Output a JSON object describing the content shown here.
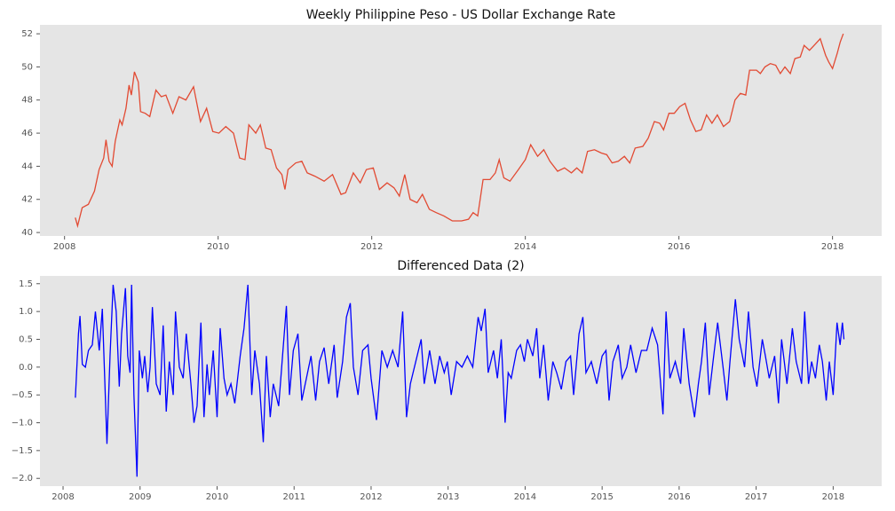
{
  "chart_data": [
    {
      "type": "line",
      "title": "Weekly Philippine Peso - US Dollar Exchange Rate",
      "x": [
        2008.14,
        2008.17,
        2008.23,
        2008.31,
        2008.39,
        2008.45,
        2008.51,
        2008.54,
        2008.58,
        2008.62,
        2008.66,
        2008.72,
        2008.75,
        2008.8,
        2008.84,
        2008.87,
        2008.91,
        2008.96,
        2008.99,
        2009.05,
        2009.11,
        2009.19,
        2009.26,
        2009.32,
        2009.41,
        2009.49,
        2009.58,
        2009.68,
        2009.77,
        2009.85,
        2009.93,
        2010.01,
        2010.1,
        2010.2,
        2010.28,
        2010.35,
        2010.4,
        2010.49,
        2010.55,
        2010.62,
        2010.69,
        2010.76,
        2010.83,
        2010.87,
        2010.91,
        2011.01,
        2011.09,
        2011.16,
        2011.26,
        2011.38,
        2011.49,
        2011.6,
        2011.66,
        2011.76,
        2011.85,
        2011.93,
        2012.02,
        2012.1,
        2012.2,
        2012.29,
        2012.36,
        2012.43,
        2012.5,
        2012.59,
        2012.66,
        2012.75,
        2012.84,
        2012.94,
        2013.05,
        2013.17,
        2013.26,
        2013.32,
        2013.38,
        2013.45,
        2013.54,
        2013.61,
        2013.66,
        2013.72,
        2013.8,
        2013.91,
        2014.0,
        2014.07,
        2014.16,
        2014.24,
        2014.32,
        2014.42,
        2014.51,
        2014.6,
        2014.67,
        2014.74,
        2014.81,
        2014.9,
        2014.99,
        2015.06,
        2015.13,
        2015.21,
        2015.29,
        2015.36,
        2015.43,
        2015.53,
        2015.6,
        2015.68,
        2015.75,
        2015.8,
        2015.87,
        2015.94,
        2016.01,
        2016.08,
        2016.15,
        2016.22,
        2016.29,
        2016.36,
        2016.43,
        2016.5,
        2016.58,
        2016.66,
        2016.73,
        2016.8,
        2016.87,
        2016.92,
        2017.01,
        2017.06,
        2017.12,
        2017.19,
        2017.26,
        2017.32,
        2017.38,
        2017.45,
        2017.51,
        2017.58,
        2017.63,
        2017.7,
        2017.76,
        2017.84,
        2017.91,
        2017.95,
        2018.0,
        2018.06,
        2018.1,
        2018.14
      ],
      "series": [
        {
          "color": "#e24a33",
          "values": [
            40.9,
            40.4,
            41.5,
            41.7,
            42.5,
            43.8,
            44.5,
            45.6,
            44.3,
            44.0,
            45.5,
            46.8,
            46.5,
            47.5,
            48.9,
            48.3,
            49.7,
            49.1,
            47.3,
            47.2,
            47.0,
            48.6,
            48.2,
            48.3,
            47.2,
            48.2,
            48.0,
            48.8,
            46.7,
            47.5,
            46.1,
            46.0,
            46.4,
            46.0,
            44.5,
            44.4,
            46.5,
            46.0,
            46.5,
            45.1,
            45.0,
            43.9,
            43.5,
            42.6,
            43.8,
            44.2,
            44.3,
            43.6,
            43.4,
            43.1,
            43.5,
            42.3,
            42.4,
            43.6,
            43.0,
            43.8,
            43.9,
            42.6,
            43.0,
            42.7,
            42.2,
            43.5,
            42.0,
            41.8,
            42.3,
            41.4,
            41.2,
            41.0,
            40.7,
            40.7,
            40.8,
            41.2,
            41.0,
            43.2,
            43.2,
            43.6,
            44.4,
            43.3,
            43.1,
            43.8,
            44.4,
            45.3,
            44.6,
            45.0,
            44.3,
            43.7,
            43.9,
            43.6,
            43.9,
            43.6,
            44.9,
            45.0,
            44.8,
            44.7,
            44.2,
            44.3,
            44.6,
            44.2,
            45.1,
            45.2,
            45.7,
            46.7,
            46.6,
            46.2,
            47.2,
            47.2,
            47.6,
            47.8,
            46.8,
            46.1,
            46.2,
            47.1,
            46.6,
            47.1,
            46.4,
            46.7,
            48.0,
            48.4,
            48.3,
            49.8,
            49.8,
            49.6,
            50.0,
            50.2,
            50.1,
            49.6,
            50.0,
            49.6,
            50.5,
            50.6,
            51.3,
            51.0,
            51.3,
            51.7,
            50.7,
            50.3,
            49.9,
            50.8,
            51.5,
            52.0
          ]
        }
      ],
      "xlim": [
        2007.68,
        2018.64
      ],
      "ylim": [
        39.79,
        52.54
      ],
      "xticks": [
        2008,
        2010,
        2012,
        2014,
        2016,
        2018
      ],
      "yticks": [
        40,
        42,
        44,
        46,
        48,
        50,
        52
      ]
    },
    {
      "type": "line",
      "title": "Differenced Data (2)",
      "x": [
        2008.16,
        2008.2,
        2008.22,
        2008.25,
        2008.29,
        2008.33,
        2008.38,
        2008.42,
        2008.47,
        2008.51,
        2008.57,
        2008.61,
        2008.65,
        2008.69,
        2008.73,
        2008.76,
        2008.81,
        2008.84,
        2008.87,
        2008.89,
        2008.92,
        2008.96,
        2008.99,
        2009.03,
        2009.06,
        2009.1,
        2009.13,
        2009.16,
        2009.21,
        2009.26,
        2009.3,
        2009.34,
        2009.38,
        2009.43,
        2009.46,
        2009.51,
        2009.56,
        2009.6,
        2009.66,
        2009.7,
        2009.74,
        2009.79,
        2009.83,
        2009.87,
        2009.9,
        2009.95,
        2010.0,
        2010.04,
        2010.09,
        2010.13,
        2010.18,
        2010.23,
        2010.3,
        2010.35,
        2010.4,
        2010.45,
        2010.49,
        2010.55,
        2010.6,
        2010.64,
        2010.69,
        2010.73,
        2010.8,
        2010.85,
        2010.9,
        2010.94,
        2010.99,
        2011.05,
        2011.1,
        2011.16,
        2011.22,
        2011.28,
        2011.33,
        2011.39,
        2011.45,
        2011.52,
        2011.56,
        2011.63,
        2011.68,
        2011.73,
        2011.77,
        2011.83,
        2011.89,
        2011.96,
        2012.0,
        2012.07,
        2012.14,
        2012.21,
        2012.28,
        2012.35,
        2012.41,
        2012.46,
        2012.51,
        2012.58,
        2012.65,
        2012.69,
        2012.76,
        2012.83,
        2012.89,
        2012.95,
        2012.99,
        2013.04,
        2013.11,
        2013.18,
        2013.25,
        2013.32,
        2013.39,
        2013.43,
        2013.48,
        2013.52,
        2013.59,
        2013.64,
        2013.69,
        2013.74,
        2013.78,
        2013.82,
        2013.89,
        2013.94,
        2013.99,
        2014.03,
        2014.1,
        2014.15,
        2014.19,
        2014.24,
        2014.3,
        2014.36,
        2014.41,
        2014.47,
        2014.53,
        2014.59,
        2014.63,
        2014.7,
        2014.75,
        2014.79,
        2014.86,
        2014.93,
        2015.0,
        2015.05,
        2015.09,
        2015.14,
        2015.21,
        2015.26,
        2015.32,
        2015.37,
        2015.44,
        2015.51,
        2015.58,
        2015.65,
        2015.72,
        2015.79,
        2015.83,
        2015.88,
        2015.95,
        2016.02,
        2016.06,
        2016.13,
        2016.2,
        2016.25,
        2016.29,
        2016.34,
        2016.39,
        2016.44,
        2016.5,
        2016.57,
        2016.62,
        2016.66,
        2016.73,
        2016.78,
        2016.85,
        2016.9,
        2016.96,
        2017.01,
        2017.08,
        2017.12,
        2017.17,
        2017.24,
        2017.29,
        2017.33,
        2017.4,
        2017.47,
        2017.52,
        2017.59,
        2017.63,
        2017.68,
        2017.72,
        2017.77,
        2017.82,
        2017.86,
        2017.91,
        2017.95,
        2018.0,
        2018.05,
        2018.09,
        2018.12,
        2018.14
      ],
      "series": [
        {
          "color": "#0000ff",
          "values": [
            -0.55,
            0.6,
            0.92,
            0.05,
            0.0,
            0.3,
            0.4,
            1.0,
            0.3,
            1.05,
            -1.38,
            0.2,
            1.48,
            1.0,
            -0.35,
            0.6,
            1.42,
            0.2,
            -0.1,
            1.48,
            -0.5,
            -1.97,
            0.3,
            -0.2,
            0.2,
            -0.45,
            0.0,
            1.08,
            -0.3,
            -0.5,
            0.75,
            -0.8,
            0.1,
            -0.5,
            1.0,
            0.0,
            -0.2,
            0.6,
            -0.3,
            -1.0,
            -0.7,
            0.8,
            -0.9,
            0.05,
            -0.5,
            0.3,
            -0.9,
            0.7,
            -0.2,
            -0.5,
            -0.3,
            -0.65,
            0.2,
            0.7,
            1.48,
            -0.5,
            0.3,
            -0.3,
            -1.35,
            0.2,
            -0.9,
            -0.3,
            -0.7,
            0.2,
            1.1,
            -0.5,
            0.3,
            0.6,
            -0.6,
            -0.2,
            0.2,
            -0.6,
            0.1,
            0.35,
            -0.3,
            0.4,
            -0.55,
            0.1,
            0.9,
            1.15,
            0.0,
            -0.5,
            0.3,
            0.4,
            -0.2,
            -0.95,
            0.3,
            0.0,
            0.3,
            0.0,
            1.0,
            -0.9,
            -0.3,
            0.1,
            0.5,
            -0.3,
            0.3,
            -0.3,
            0.2,
            -0.1,
            0.1,
            -0.5,
            0.1,
            0.0,
            0.2,
            0.0,
            0.9,
            0.65,
            1.05,
            -0.1,
            0.3,
            -0.2,
            0.5,
            -1.0,
            -0.1,
            -0.2,
            0.3,
            0.4,
            0.1,
            0.5,
            0.2,
            0.7,
            -0.2,
            0.4,
            -0.6,
            0.1,
            -0.1,
            -0.4,
            0.1,
            0.2,
            -0.5,
            0.6,
            0.9,
            -0.1,
            0.1,
            -0.3,
            0.2,
            0.3,
            -0.6,
            0.1,
            0.4,
            -0.2,
            0.0,
            0.4,
            -0.1,
            0.3,
            0.3,
            0.7,
            0.4,
            -0.85,
            1.0,
            -0.2,
            0.1,
            -0.3,
            0.7,
            -0.3,
            -0.9,
            -0.3,
            0.1,
            0.8,
            -0.5,
            0.1,
            0.8,
            0.0,
            -0.6,
            0.1,
            1.22,
            0.5,
            0.0,
            1.0,
            0.0,
            -0.35,
            0.5,
            0.2,
            -0.2,
            0.2,
            -0.65,
            0.5,
            -0.3,
            0.7,
            0.1,
            -0.3,
            1.0,
            -0.3,
            0.1,
            -0.2,
            0.4,
            0.1,
            -0.6,
            0.1,
            -0.5,
            0.8,
            0.4,
            0.8,
            0.5
          ]
        }
      ],
      "xlim": [
        2007.7,
        2018.63
      ],
      "ylim": [
        -2.14,
        1.64
      ],
      "xticks": [
        2008,
        2009,
        2010,
        2011,
        2012,
        2013,
        2014,
        2015,
        2016,
        2017,
        2018
      ],
      "yticks": [
        {
          "value": -2,
          "label": "−2.0"
        },
        {
          "value": -1.5,
          "label": "−1.5"
        },
        {
          "value": -1,
          "label": "−1.0"
        },
        {
          "value": -0.5,
          "label": "−0.5"
        },
        {
          "value": 0,
          "label": "0.0"
        },
        0.5,
        {
          "value": 1,
          "label": "1.0"
        },
        1.5
      ]
    }
  ]
}
